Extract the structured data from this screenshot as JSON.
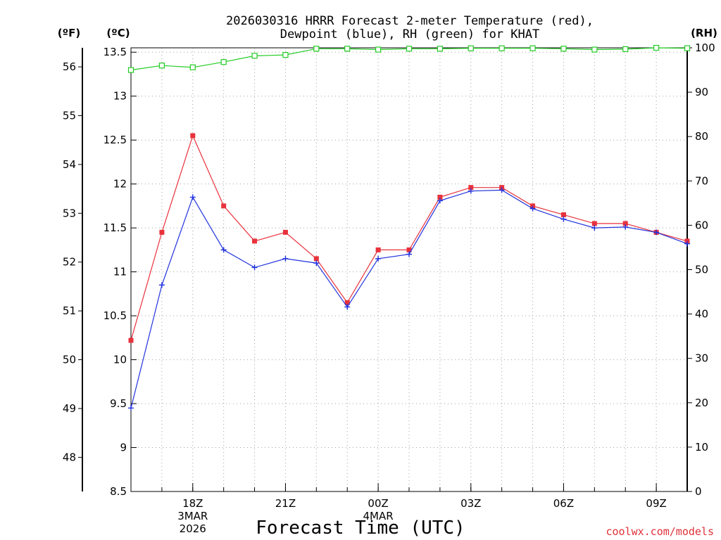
{
  "chart_data": {
    "type": "line",
    "title_lines": [
      "2026030316 HRRR Forecast 2-meter Temperature (red),",
      "Dewpoint (blue), RH (green) for KHAT"
    ],
    "units": {
      "f": "(ºF)",
      "c": "(ºC)",
      "rh": "(RH)"
    },
    "xlabel": "Forecast Time (UTC)",
    "credit": "coolwx.com/models",
    "x_hours": [
      16,
      17,
      18,
      19,
      20,
      21,
      22,
      23,
      24,
      25,
      26,
      27,
      28,
      29,
      30,
      31,
      32,
      33,
      34
    ],
    "xlim": [
      16,
      34
    ],
    "x_ticks": [
      {
        "hour": 18,
        "lines": [
          "18Z",
          "3MAR",
          "2026"
        ]
      },
      {
        "hour": 21,
        "lines": [
          "21Z"
        ]
      },
      {
        "hour": 24,
        "lines": [
          "00Z",
          "4MAR"
        ]
      },
      {
        "hour": 27,
        "lines": [
          "03Z"
        ]
      },
      {
        "hour": 30,
        "lines": [
          "06Z"
        ]
      },
      {
        "hour": 33,
        "lines": [
          "09Z"
        ]
      }
    ],
    "celsius_axis": {
      "range": [
        8.5,
        13.55
      ],
      "ticks": [
        "8.5",
        "9",
        "9.5",
        "10",
        "10.5",
        "11",
        "11.5",
        "12",
        "12.5",
        "13",
        "13.5"
      ]
    },
    "fahrenheit_axis": {
      "ticks": [
        "48",
        "49",
        "50",
        "51",
        "52",
        "53",
        "54",
        "55",
        "56"
      ]
    },
    "rh_axis": {
      "range": [
        0,
        100
      ],
      "ticks": [
        "0",
        "10",
        "20",
        "30",
        "40",
        "50",
        "60",
        "70",
        "80",
        "90",
        "100"
      ]
    },
    "series": [
      {
        "name": "Temperature",
        "color": "#e8323c",
        "marker": "filled-square",
        "axis": "celsius",
        "values": [
          10.22,
          11.45,
          12.55,
          11.75,
          11.35,
          11.45,
          11.15,
          10.65,
          11.25,
          11.25,
          11.85,
          11.96,
          11.96,
          11.75,
          11.65,
          11.55,
          11.55,
          11.45,
          11.35
        ]
      },
      {
        "name": "Dewpoint",
        "color": "#2233dd",
        "marker": "plus",
        "axis": "celsius",
        "values": [
          9.45,
          10.85,
          11.85,
          11.25,
          11.05,
          11.15,
          11.1,
          10.6,
          11.15,
          11.2,
          11.81,
          11.92,
          11.93,
          11.72,
          11.6,
          11.5,
          11.51,
          11.45,
          11.32
        ]
      },
      {
        "name": "RH",
        "color": "#22cc22",
        "marker": "open-square",
        "axis": "rh",
        "values": [
          95.0,
          96.0,
          95.6,
          96.8,
          98.2,
          98.4,
          99.8,
          99.8,
          99.6,
          99.8,
          99.8,
          99.9,
          99.9,
          99.9,
          99.8,
          99.6,
          99.7,
          100.0,
          99.9
        ]
      }
    ]
  }
}
